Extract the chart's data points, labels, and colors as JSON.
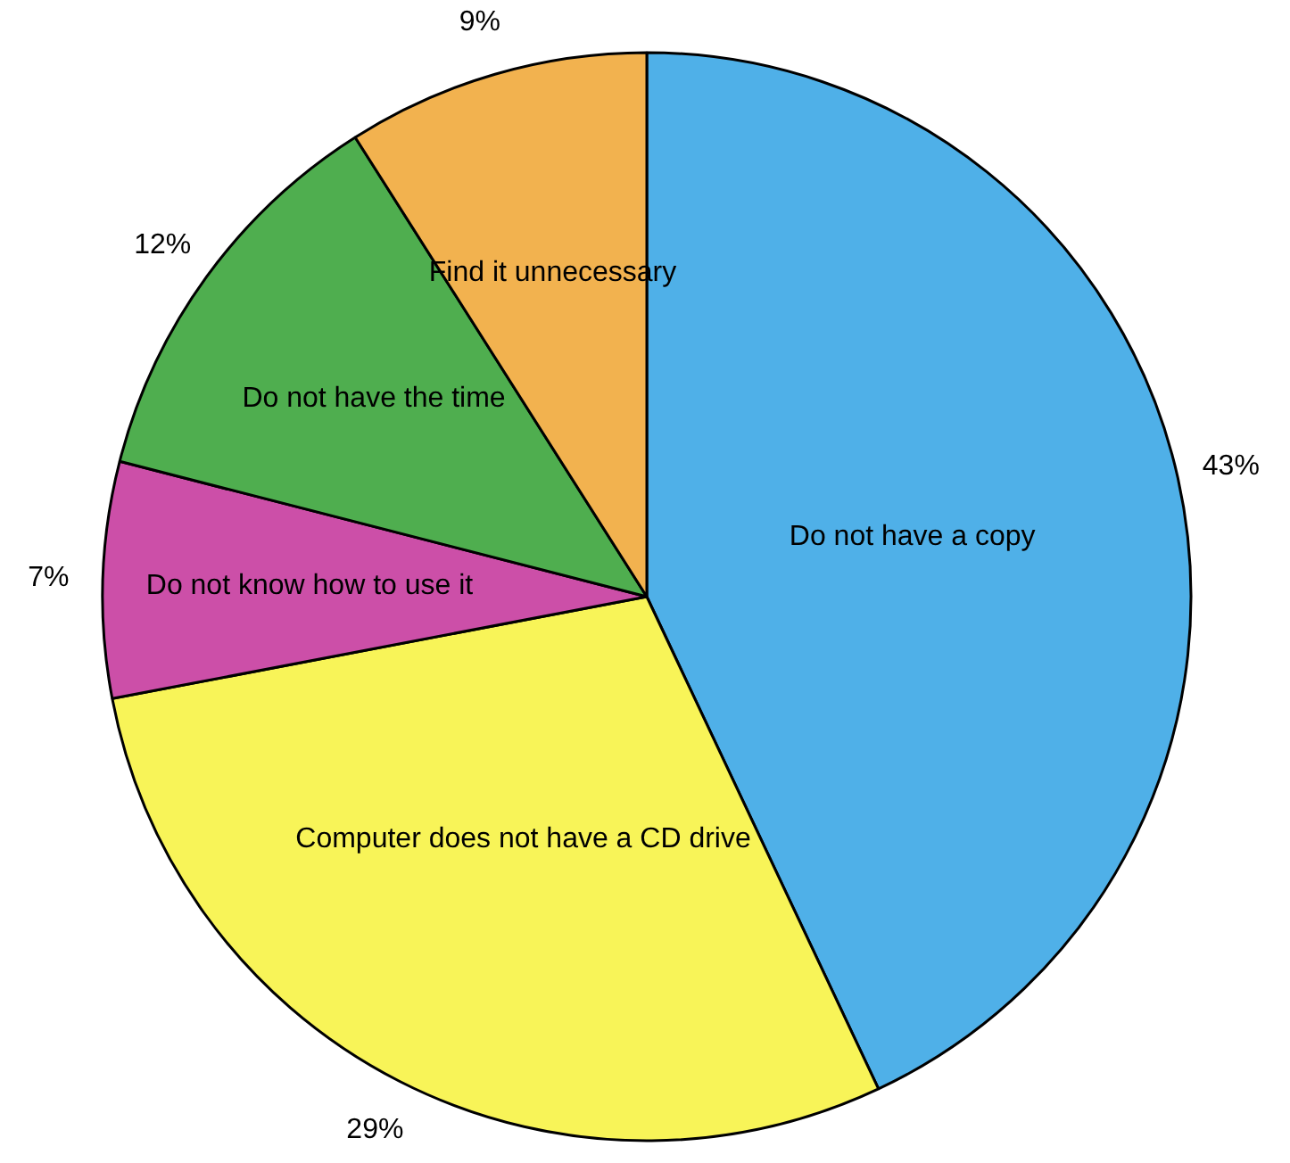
{
  "chart_data": {
    "type": "pie",
    "categories": [
      "Do not have a copy",
      "Computer does not have a CD drive",
      "Do not know how to use it",
      "Do not have the time",
      "Find it unnecessary"
    ],
    "values": [
      43,
      29,
      7,
      12,
      9
    ],
    "colors": [
      "#4fb0e8",
      "#f8f458",
      "#cc4fa8",
      "#4fae4f",
      "#f2b24f"
    ],
    "value_labels": [
      "43%",
      "29%",
      "7%",
      "12%",
      "9%"
    ]
  }
}
